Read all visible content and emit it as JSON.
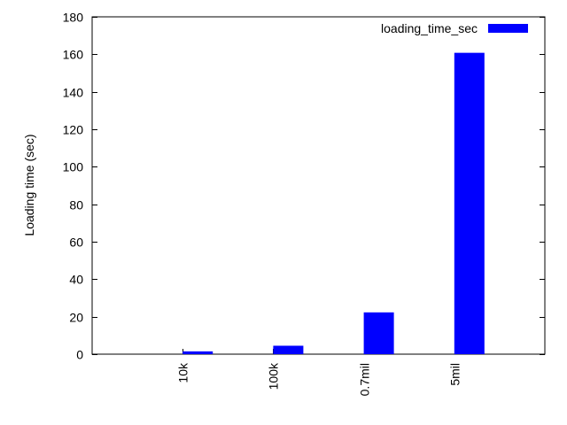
{
  "chart_data": {
    "type": "bar",
    "title": "",
    "xlabel": "",
    "ylabel": "Loading time (sec)",
    "categories": [
      "10k",
      "100k",
      "0.7mil",
      "5mil"
    ],
    "series": [
      {
        "name": "loading_time_sec",
        "values": [
          1.5,
          4.5,
          22.3,
          160.8
        ],
        "color": "#0000ff"
      }
    ],
    "ylim": [
      0,
      180
    ],
    "yticks": [
      0,
      20,
      40,
      60,
      80,
      100,
      120,
      140,
      160,
      180
    ],
    "legend": "top-right",
    "grid": false
  }
}
